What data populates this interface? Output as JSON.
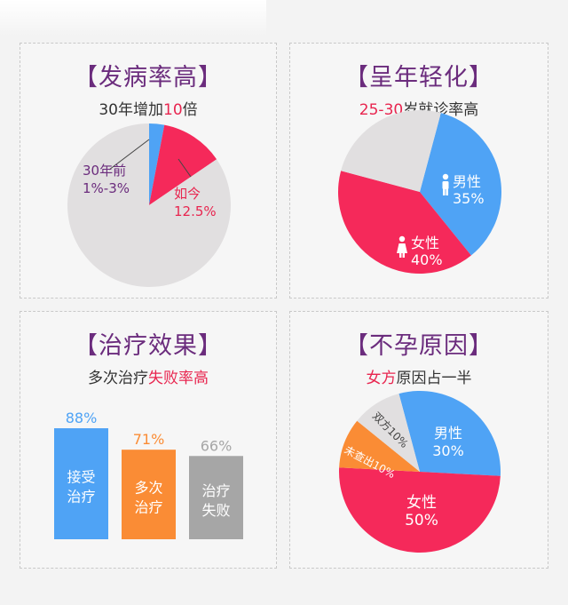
{
  "colors": {
    "purple": "#6b2c7d",
    "red": "#f5295a",
    "blue": "#4fa3f5",
    "orange": "#fa8c35",
    "gray": "#a6a6a6",
    "light_gray": "#e1dfe0"
  },
  "panels": [
    {
      "title": "【发病率高】",
      "subtitle_parts": [
        "30年增加",
        "10",
        "倍"
      ]
    },
    {
      "title": "【呈年轻化】",
      "subtitle_parts": [
        "25-30",
        "岁就诊率高"
      ]
    },
    {
      "title": "【治疗效果】",
      "subtitle_parts": [
        "多次治疗",
        "失败率高"
      ]
    },
    {
      "title": "【不孕原因】",
      "subtitle_parts": [
        "女方",
        "原因占一半"
      ]
    }
  ],
  "chart_data": [
    {
      "type": "pie",
      "slices": [
        {
          "label": "30年前",
          "value_label": "1%-3%",
          "value": 3,
          "color": "#4fa3f5"
        },
        {
          "label": "如今",
          "value_label": "12.5%",
          "value": 12.5,
          "color": "#f5295a"
        },
        {
          "label": "",
          "value_label": "",
          "value": 84.5,
          "color": "#e1dfe0"
        }
      ]
    },
    {
      "type": "pie",
      "slices": [
        {
          "label": "男性",
          "value_label": "35%",
          "value": 35,
          "color": "#4fa3f5",
          "icon": "male-icon"
        },
        {
          "label": "女性",
          "value_label": "40%",
          "value": 40,
          "color": "#f5295a",
          "icon": "female-icon"
        },
        {
          "label": "",
          "value_label": "",
          "value": 25,
          "color": "#e1dfe0"
        }
      ]
    },
    {
      "type": "bar",
      "categories": [
        "接受\n治疗",
        "多次\n治疗",
        "治疗\n失败"
      ],
      "values": [
        88,
        71,
        66
      ],
      "value_labels": [
        "88%",
        "71%",
        "66%"
      ],
      "colors": [
        "#4fa3f5",
        "#fa8c35",
        "#a6a6a6"
      ]
    },
    {
      "type": "pie",
      "slices": [
        {
          "label": "男性",
          "value_label": "30%",
          "value": 30,
          "color": "#4fa3f5"
        },
        {
          "label": "女性",
          "value_label": "50%",
          "value": 50,
          "color": "#f5295a"
        },
        {
          "label": "未查出",
          "value_label": "10%",
          "value": 10,
          "color": "#fa8c35"
        },
        {
          "label": "双方",
          "value_label": "10%",
          "value": 10,
          "color": "#e1dfe0"
        }
      ]
    }
  ]
}
